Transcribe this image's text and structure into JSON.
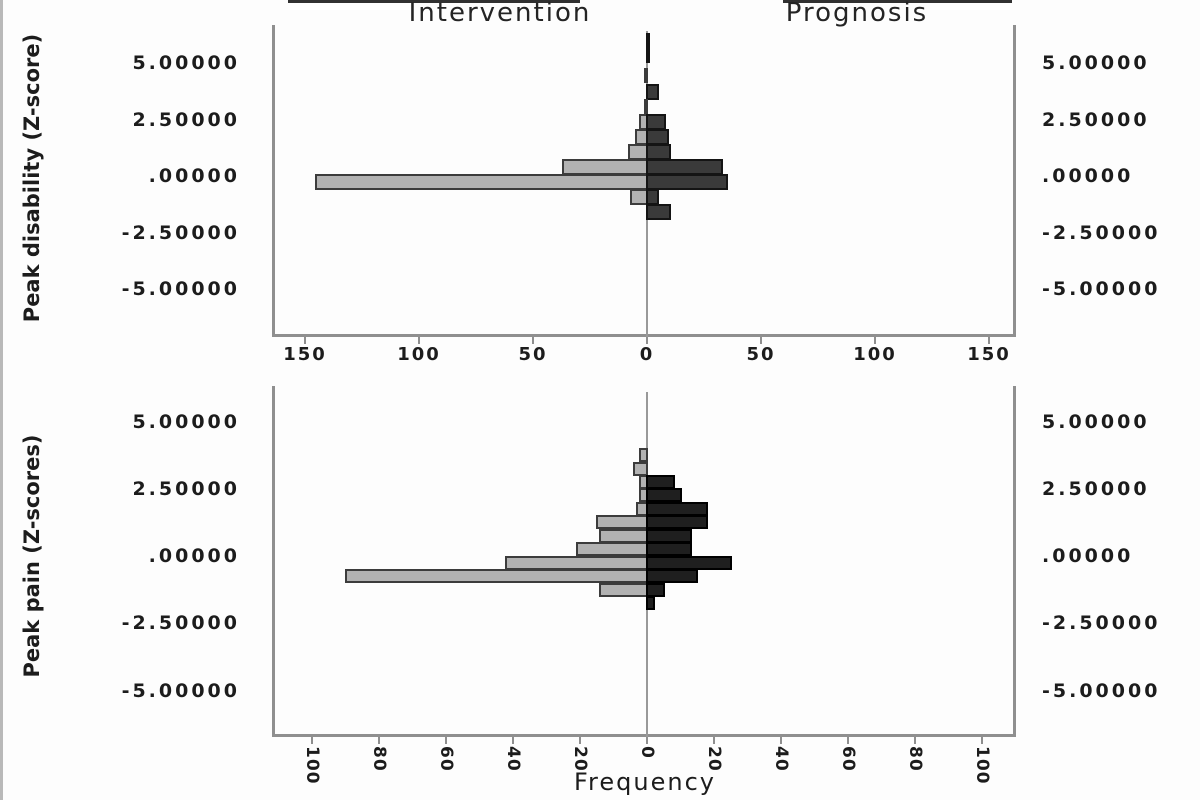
{
  "figure": {
    "title_left": "Intervention",
    "title_right": "Prognosis",
    "x_axis_label": "Frequency"
  },
  "colors": {
    "background": "#fdfdfd",
    "text": "#1c1c1c",
    "axis_gray": "#8f8f8f",
    "center_line": "#999999",
    "light_bar": "#b2b2b2",
    "light_bar_border": "#3c3c3c",
    "dark_bar_top_panel": "#3a3a3a",
    "dark_bar_top_panel_border": "#141414",
    "dark_bar_bottom_panel": "#1f1f1f",
    "dark_bar_bottom_panel_border": "#000000"
  },
  "chart_data": [
    {
      "type": "bar",
      "subtype": "back-to-back-histogram",
      "panel": "top",
      "ylabel": "Peak disability (Z-score)",
      "series_left": "Intervention",
      "series_right": "Prognosis",
      "xlabel": "Frequency",
      "x_axis_max_per_side": 150,
      "ylim": [
        -7,
        6.7
      ],
      "grid": false,
      "x_ticks": {
        "values": [
          -150,
          -100,
          -50,
          0,
          50,
          100,
          150
        ],
        "labels": [
          "150",
          "100",
          "50",
          "0",
          "50",
          "100",
          "150"
        ]
      },
      "y_ticks": {
        "values": [
          5,
          2.5,
          0,
          -2.5,
          -5
        ],
        "labels": [
          "5.00000",
          "2.50000",
          ".00000",
          "-2.50000",
          "-5.00000"
        ]
      },
      "bins": [
        {
          "z": 6.0,
          "intervention": 0,
          "prognosis": 1
        },
        {
          "z": 5.35,
          "intervention": 0,
          "prognosis": 1
        },
        {
          "z": 4.45,
          "intervention": 1,
          "prognosis": 0
        },
        {
          "z": 3.72,
          "intervention": 0,
          "prognosis": 5
        },
        {
          "z": 3.05,
          "intervention": 1,
          "prognosis": 0
        },
        {
          "z": 2.4,
          "intervention": 3,
          "prognosis": 8
        },
        {
          "z": 1.73,
          "intervention": 5,
          "prognosis": 9
        },
        {
          "z": 1.06,
          "intervention": 8,
          "prognosis": 10
        },
        {
          "z": 0.4,
          "intervention": 37,
          "prognosis": 33
        },
        {
          "z": -0.27,
          "intervention": 145,
          "prognosis": 35
        },
        {
          "z": -0.93,
          "intervention": 7,
          "prognosis": 5
        },
        {
          "z": -1.6,
          "intervention": 0,
          "prognosis": 10
        }
      ]
    },
    {
      "type": "bar",
      "subtype": "back-to-back-histogram",
      "panel": "bottom",
      "ylabel": "Peak pain (Z-scores)",
      "series_left": "Intervention",
      "series_right": "Prognosis",
      "xlabel": "Frequency",
      "x_axis_max_per_side": 100,
      "ylim": [
        -6.6,
        6.3
      ],
      "grid": false,
      "x_ticks": {
        "values": [
          -100,
          -80,
          -60,
          -40,
          -20,
          0,
          20,
          40,
          60,
          80,
          100
        ],
        "labels": [
          "100",
          "80",
          "60",
          "40",
          "20",
          "0",
          "20",
          "40",
          "60",
          "80",
          "100"
        ]
      },
      "y_ticks": {
        "values": [
          5,
          2.5,
          0,
          -2.5,
          -5
        ],
        "labels": [
          "5.00000",
          "2.50000",
          ".00000",
          "-2.50000",
          "-5.00000"
        ]
      },
      "bins": [
        {
          "z": 3.75,
          "intervention": 2,
          "prognosis": 0
        },
        {
          "z": 3.25,
          "intervention": 4,
          "prognosis": 0
        },
        {
          "z": 2.75,
          "intervention": 2,
          "prognosis": 8
        },
        {
          "z": 2.25,
          "intervention": 2,
          "prognosis": 10
        },
        {
          "z": 1.75,
          "intervention": 3,
          "prognosis": 18
        },
        {
          "z": 1.25,
          "intervention": 15,
          "prognosis": 18
        },
        {
          "z": 0.75,
          "intervention": 14,
          "prognosis": 13
        },
        {
          "z": 0.25,
          "intervention": 21,
          "prognosis": 13
        },
        {
          "z": -0.25,
          "intervention": 42,
          "prognosis": 25
        },
        {
          "z": -0.75,
          "intervention": 90,
          "prognosis": 15
        },
        {
          "z": -1.25,
          "intervention": 14,
          "prognosis": 5
        },
        {
          "z": -1.75,
          "intervention": 0,
          "prognosis": 2
        }
      ]
    }
  ]
}
